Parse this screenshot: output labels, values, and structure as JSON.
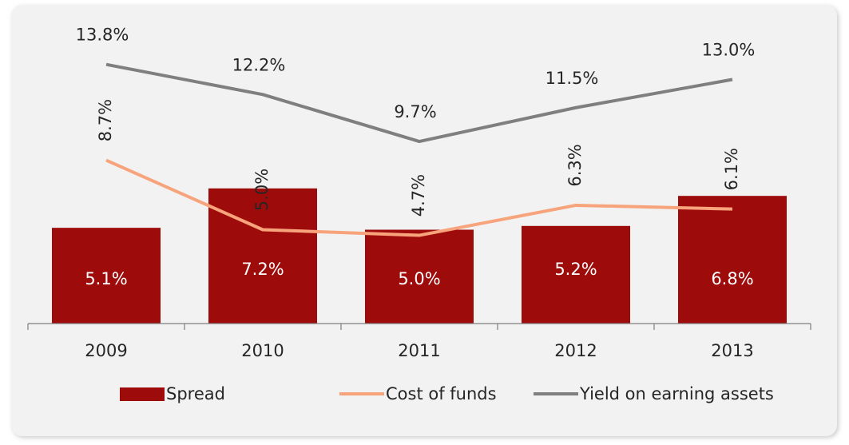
{
  "chart_data": {
    "type": "bar-line",
    "categories": [
      "2009",
      "2010",
      "2011",
      "2012",
      "2013"
    ],
    "ylim": [
      0,
      15
    ],
    "series": [
      {
        "name": "Spread",
        "type": "bar",
        "color": "#9e0b0b",
        "values": [
          5.1,
          7.2,
          5.0,
          5.2,
          6.8
        ],
        "value_labels": [
          "5.1%",
          "7.2%",
          "5.0%",
          "5.2%",
          "6.8%"
        ]
      },
      {
        "name": "Cost of funds",
        "type": "line",
        "color": "#f7a47c",
        "values": [
          8.7,
          5.0,
          4.7,
          6.3,
          6.1
        ],
        "value_labels": [
          "8.7%",
          "5.0%",
          "4.7%",
          "6.3%",
          "6.1%"
        ]
      },
      {
        "name": "Yield on earning assets",
        "type": "line",
        "color": "#7f7f7f",
        "values": [
          13.8,
          12.2,
          9.7,
          11.5,
          13.0
        ],
        "value_labels": [
          "13.8%",
          "12.2%",
          "9.7%",
          "11.5%",
          "13.0%"
        ]
      }
    ]
  }
}
